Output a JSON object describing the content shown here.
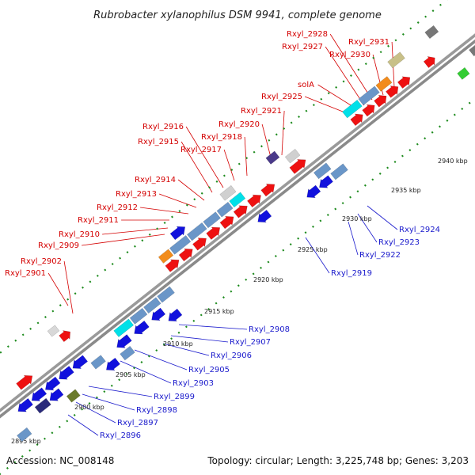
{
  "title": "Rubrobacter xylanophilus DSM 9941, complete genome",
  "footer": {
    "accession": "Accession: NC_008148",
    "summary": "Topology: circular; Length: 3,225,748 bp; Genes: 3,203"
  },
  "colors": {
    "forward_label": "#d40000",
    "reverse_label": "#1a1acc",
    "forward_gene": "#ee1111",
    "reverse_gene": "#1111dd",
    "backbone": "#999999",
    "tick": "#1c8a1c"
  },
  "ticks": [
    "2895 kbp",
    "2900 kbp",
    "2905 kbp",
    "2910 kbp",
    "2915 kbp",
    "2920 kbp",
    "2925 kbp",
    "2930 kbp",
    "2935 kbp",
    "2940 kbp"
  ],
  "forward_labels": [
    "Rxyl_2901",
    "Rxyl_2902",
    "Rxyl_2909",
    "Rxyl_2910",
    "Rxyl_2911",
    "Rxyl_2912",
    "Rxyl_2913",
    "Rxyl_2914",
    "Rxyl_2915",
    "Rxyl_2916",
    "Rxyl_2917",
    "Rxyl_2918",
    "Rxyl_2920",
    "Rxyl_2921",
    "Rxyl_2925",
    "solA",
    "Rxyl_2927",
    "Rxyl_2928",
    "Rxyl_2930",
    "Rxyl_2931"
  ],
  "reverse_labels": [
    "Rxyl_2896",
    "Rxyl_2897",
    "Rxyl_2898",
    "Rxyl_2899",
    "Rxyl_2903",
    "Rxyl_2905",
    "Rxyl_2906",
    "Rxyl_2907",
    "Rxyl_2908",
    "Rxyl_2919",
    "Rxyl_2922",
    "Rxyl_2923",
    "Rxyl_2924"
  ]
}
